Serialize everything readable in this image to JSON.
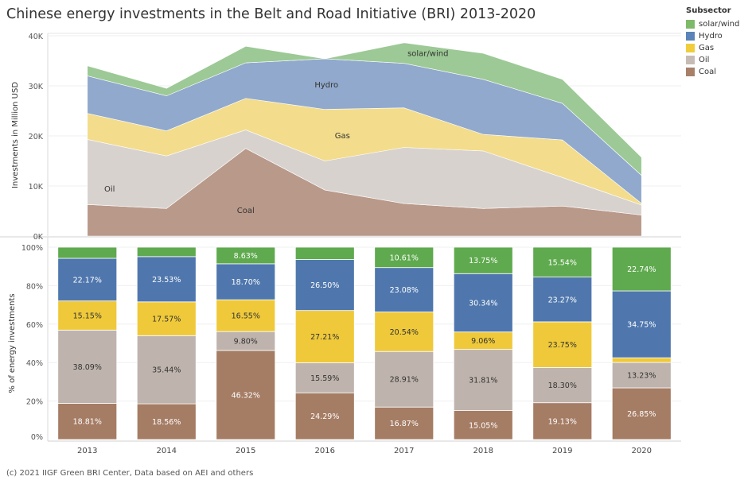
{
  "title": "Chinese energy investments in the Belt and Road Initiative (BRI) 2013-2020",
  "footer": "(c) 2021 IIGF Green BRI Center, Data based on AEI and others",
  "legend": {
    "title": "Subsector",
    "items": [
      {
        "label": "solar/wind",
        "color": "#7fba6a"
      },
      {
        "label": "Hydro",
        "color": "#5b84b8"
      },
      {
        "label": "Gas",
        "color": "#f0cd3c"
      },
      {
        "label": "Oil",
        "color": "#c7bcb5"
      },
      {
        "label": "Coal",
        "color": "#a8806a"
      }
    ]
  },
  "chart_data": [
    {
      "type": "area",
      "stacked": true,
      "ylabel": "Investments in Million USD",
      "ylim": [
        0,
        40000
      ],
      "yticks": [
        "0K",
        "10K",
        "20K",
        "30K",
        "40K"
      ],
      "x": [
        "2013",
        "2014",
        "2015",
        "2016",
        "2017",
        "2018",
        "2019",
        "2020"
      ],
      "series": [
        {
          "name": "Coal",
          "color": "#b9998a",
          "values": [
            6300,
            5500,
            17500,
            9200,
            6500,
            5500,
            6000,
            4200
          ]
        },
        {
          "name": "Oil",
          "color": "#d8d2cf",
          "values": [
            13000,
            10500,
            3700,
            5800,
            11200,
            11500,
            5700,
            2000
          ]
        },
        {
          "name": "Gas",
          "color": "#f3dc8b",
          "values": [
            5200,
            5000,
            6300,
            10300,
            7900,
            3300,
            7500,
            300
          ]
        },
        {
          "name": "Hydro",
          "color": "#91a9cc",
          "values": [
            7500,
            7000,
            7100,
            10100,
            8900,
            11000,
            7300,
            5600
          ]
        },
        {
          "name": "solar/wind",
          "color": "#9cc995",
          "values": [
            2000,
            1500,
            3300,
            0,
            4100,
            5200,
            4800,
            3600
          ]
        }
      ],
      "annotations": [
        "solar/wind",
        "Hydro",
        "Gas",
        "Oil",
        "Coal"
      ]
    },
    {
      "type": "bar",
      "stacked": true,
      "ylabel": "% of energy investments",
      "ylim": [
        0,
        100
      ],
      "yticks": [
        "0%",
        "20%",
        "40%",
        "60%",
        "80%",
        "100%"
      ],
      "categories": [
        "2013",
        "2014",
        "2015",
        "2016",
        "2017",
        "2018",
        "2019",
        "2020"
      ],
      "series": [
        {
          "name": "Coal",
          "color": "#a57c64",
          "values": [
            18.81,
            18.56,
            46.32,
            24.29,
            16.87,
            15.05,
            19.13,
            26.85
          ],
          "labels": [
            "18.81%",
            "18.56%",
            "46.32%",
            "24.29%",
            "16.87%",
            "15.05%",
            "19.13%",
            "26.85%"
          ]
        },
        {
          "name": "Oil",
          "color": "#bfb4ad",
          "values": [
            38.09,
            35.44,
            9.8,
            15.59,
            28.91,
            31.81,
            18.3,
            13.23
          ],
          "labels": [
            "38.09%",
            "35.44%",
            "9.80%",
            "15.59%",
            "28.91%",
            "31.81%",
            "18.30%",
            "13.23%"
          ]
        },
        {
          "name": "Gas",
          "color": "#efc93a",
          "values": [
            15.15,
            17.57,
            16.55,
            27.21,
            20.54,
            9.06,
            23.75,
            2.43
          ],
          "labels": [
            "15.15%",
            "17.57%",
            "16.55%",
            "27.21%",
            "20.54%",
            "9.06%",
            "23.75%",
            ""
          ]
        },
        {
          "name": "Hydro",
          "color": "#4f77ad",
          "values": [
            22.17,
            23.53,
            18.7,
            26.5,
            23.08,
            30.34,
            23.27,
            34.75
          ],
          "labels": [
            "22.17%",
            "23.53%",
            "18.70%",
            "26.50%",
            "23.08%",
            "30.34%",
            "23.27%",
            "34.75%"
          ]
        },
        {
          "name": "solar/wind",
          "color": "#5faa4e",
          "values": [
            5.78,
            4.9,
            8.63,
            6.41,
            10.61,
            13.75,
            15.54,
            22.74
          ],
          "labels": [
            "",
            "",
            "8.63%",
            "",
            "10.61%",
            "13.75%",
            "15.54%",
            "22.74%"
          ]
        }
      ]
    }
  ]
}
